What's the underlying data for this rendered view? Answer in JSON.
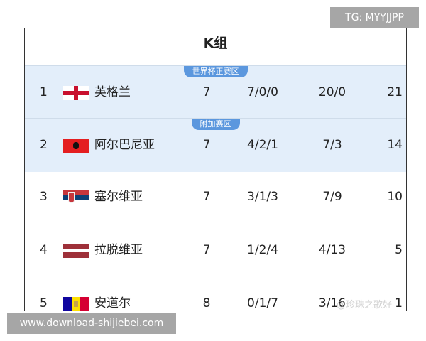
{
  "group_title": "K组",
  "zones": {
    "qualified": "世界杯正赛区",
    "playoff": "附加赛区"
  },
  "rows": [
    {
      "rank": "1",
      "flag": "england-flag",
      "team": "英格兰",
      "played": "7",
      "wdl": "7/0/0",
      "goals": "20/0",
      "points": "21"
    },
    {
      "rank": "2",
      "flag": "albania-flag",
      "team": "阿尔巴尼亚",
      "played": "7",
      "wdl": "4/2/1",
      "goals": "7/3",
      "points": "14"
    },
    {
      "rank": "3",
      "flag": "serbia-flag",
      "team": "塞尔维亚",
      "played": "7",
      "wdl": "3/1/3",
      "goals": "7/9",
      "points": "10"
    },
    {
      "rank": "4",
      "flag": "latvia-flag",
      "team": "拉脱维亚",
      "played": "7",
      "wdl": "1/2/4",
      "goals": "4/13",
      "points": "5"
    },
    {
      "rank": "5",
      "flag": "andorra-flag",
      "team": "安道尔",
      "played": "8",
      "wdl": "0/1/7",
      "goals": "3/16",
      "points": "1"
    }
  ],
  "watermarks": {
    "top": "TG: MYYJJPP",
    "bottom": "www.download-shijiebei.com",
    "inline": "@珍珠之歌好"
  },
  "colors": {
    "highlight_row": "#e3eefa",
    "zone_badge": "#5b97de"
  }
}
